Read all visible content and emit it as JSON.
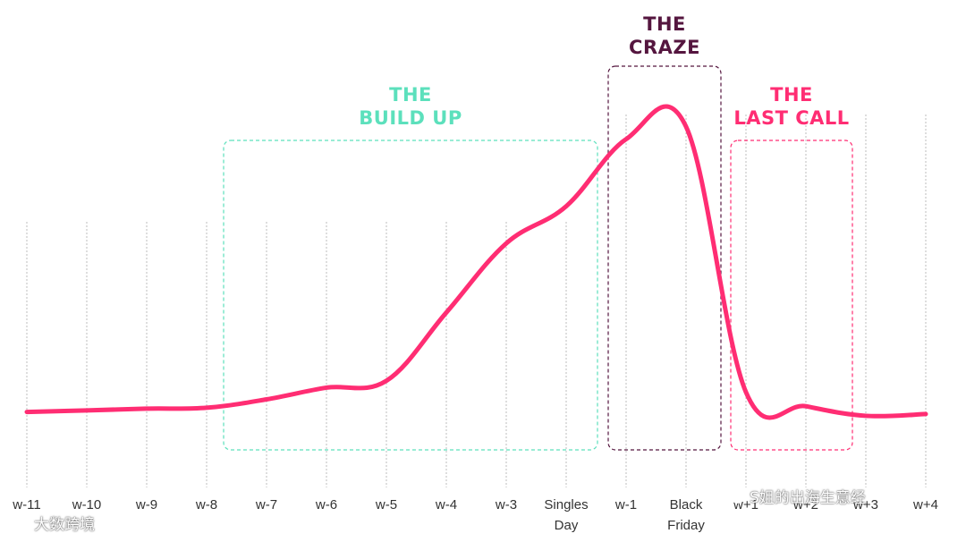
{
  "chart_data": {
    "type": "line",
    "title": "",
    "xlabel": "",
    "ylabel": "",
    "categories": [
      "w-11",
      "w-10",
      "w-9",
      "w-8",
      "w-7",
      "w-6",
      "w-5",
      "w-4",
      "w-3",
      "Singles Day",
      "w-1",
      "Black Friday",
      "w+1",
      "w+2",
      "w+3",
      "w+4"
    ],
    "category_lines": [
      [
        "w-11"
      ],
      [
        "w-10"
      ],
      [
        "w-9"
      ],
      [
        "w-8"
      ],
      [
        "w-7"
      ],
      [
        "w-6"
      ],
      [
        "w-5"
      ],
      [
        "w-4"
      ],
      [
        "w-3"
      ],
      [
        "Singles",
        "Day"
      ],
      [
        "w-1"
      ],
      [
        "Black",
        "Friday"
      ],
      [
        "w+1"
      ],
      [
        "w+2"
      ],
      [
        "w+3"
      ],
      [
        "w+4"
      ]
    ],
    "values": [
      0.8,
      1.3,
      1.9,
      2.2,
      5.0,
      8.9,
      11.2,
      34.0,
      57.1,
      69.5,
      91.9,
      96.1,
      7.4,
      2.7,
      -0.5,
      0.1
    ],
    "ylim": [
      -5,
      110
    ],
    "grid": "vertical dotted lines at categories",
    "legend": "none",
    "line_color": "#FF2D73",
    "phases": [
      {
        "lines": [
          "THE",
          "BUILD UP"
        ],
        "color": "#5CE0BC",
        "from": "w-7",
        "to": "Singles Day"
      },
      {
        "lines": [
          "THE",
          "CRAZE"
        ],
        "color": "#55163F",
        "from": "w-1",
        "to": "Black Friday"
      },
      {
        "lines": [
          "THE",
          "LAST CALL"
        ],
        "color": "#FF2D73",
        "from": "w+1",
        "to": "w+3"
      }
    ]
  },
  "watermarks": {
    "left": "大数跨境",
    "right": "S姐的出海生意经"
  }
}
